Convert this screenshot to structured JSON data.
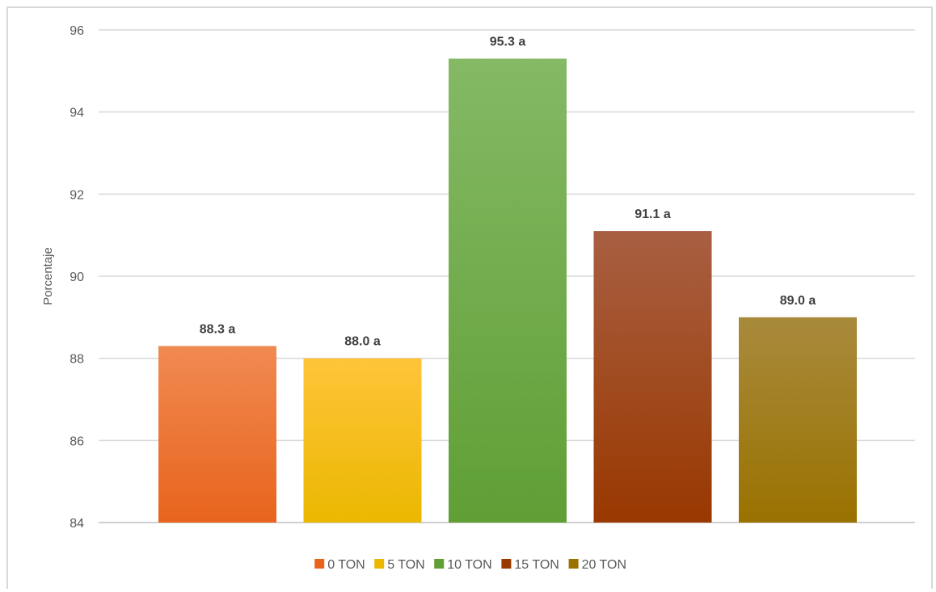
{
  "chart_data": {
    "type": "bar",
    "title": "",
    "xlabel": "",
    "ylabel": "Porcentaje",
    "ylim": [
      84,
      96
    ],
    "yticks": [
      84,
      86,
      88,
      90,
      92,
      94,
      96
    ],
    "grid": true,
    "legend_position": "bottom",
    "categories": [
      "0 TON",
      "5 TON",
      "10 TON",
      "15 TON",
      "20 TON"
    ],
    "values": [
      88.3,
      88.0,
      95.3,
      91.1,
      89.0
    ],
    "data_labels": [
      "88.3 a",
      "88.0 a",
      "95.3 a",
      "91.1 a",
      "89.0 a"
    ],
    "colors": [
      {
        "top": "#f08a52",
        "bottom": "#e8641c"
      },
      {
        "top": "#ffc43a",
        "bottom": "#ebb800"
      },
      {
        "top": "#85b965",
        "bottom": "#5f9f35"
      },
      {
        "top": "#a85f42",
        "bottom": "#993800"
      },
      {
        "top": "#a88a3c",
        "bottom": "#9a7200"
      }
    ]
  }
}
